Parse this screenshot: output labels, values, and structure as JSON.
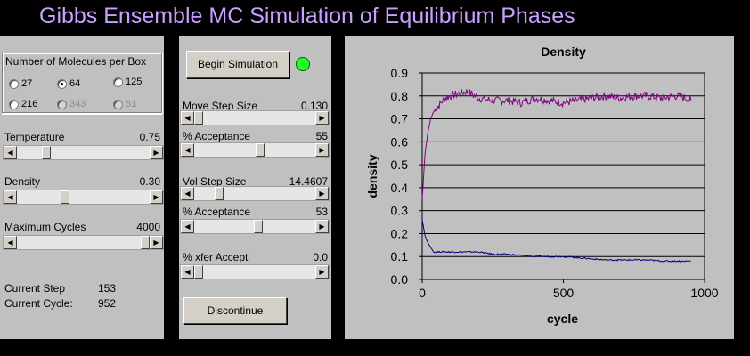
{
  "app_title": "Gibbs Ensemble MC Simulation of Equilibrium Phases",
  "left_panel": {
    "molecules_group_label": "Number of Molecules per Box",
    "molecule_options": [
      {
        "label": "27",
        "selected": false,
        "enabled": true
      },
      {
        "label": "64",
        "selected": true,
        "enabled": true
      },
      {
        "label": "125",
        "selected": false,
        "enabled": true
      },
      {
        "label": "216",
        "selected": false,
        "enabled": true
      },
      {
        "label": "343",
        "selected": false,
        "enabled": false
      },
      {
        "label": "51",
        "selected": false,
        "enabled": false
      }
    ],
    "temperature": {
      "label": "Temperature",
      "value": "0.75",
      "slider_fraction": 0.2
    },
    "density": {
      "label": "Density",
      "value": "0.30",
      "slider_fraction": 0.35
    },
    "max_cycles": {
      "label": "Maximum Cycles",
      "value": "4000",
      "slider_fraction": 1.0
    },
    "current_step": {
      "label": "Current Step",
      "value": "153"
    },
    "current_cycle": {
      "label": "Current Cycle:",
      "value": "952"
    }
  },
  "middle_panel": {
    "begin_button_label": "Begin Simulation",
    "status_indicator_color": "#22ff22",
    "move_step": {
      "label": "Move Step Size",
      "value": "0.130",
      "slider_fraction": 0.0
    },
    "move_acceptance": {
      "label": "% Acceptance",
      "value": "55",
      "slider_fraction": 0.55
    },
    "vol_step": {
      "label": "Vol Step Size",
      "value": "14.4607",
      "slider_fraction": 0.18
    },
    "vol_acceptance": {
      "label": "% Acceptance",
      "value": "53",
      "slider_fraction": 0.53
    },
    "xfer_accept": {
      "label": "% xfer Accept",
      "value": "0.0",
      "slider_fraction": 0.0
    },
    "discontinue_button_label": "Discontinue"
  },
  "chart_data": {
    "type": "line",
    "title": "Density",
    "xlabel": "cycle",
    "ylabel": "density",
    "xlim": [
      0,
      1000
    ],
    "ylim": [
      0,
      0.9
    ],
    "x_ticks": [
      "0",
      "500",
      "1000"
    ],
    "y_ticks": [
      "0.0",
      "0.1",
      "0.2",
      "0.3",
      "0.4",
      "0.5",
      "0.6",
      "0.7",
      "0.8",
      "0.9"
    ],
    "grid": "horizontal",
    "series": [
      {
        "color": "#800080",
        "x": [
          0,
          10,
          20,
          30,
          40,
          60,
          80,
          100,
          130,
          160,
          200,
          250,
          300,
          350,
          400,
          450,
          500,
          550,
          600,
          650,
          700,
          750,
          800,
          850,
          900,
          940,
          952
        ],
        "y": [
          0.35,
          0.55,
          0.64,
          0.7,
          0.73,
          0.76,
          0.79,
          0.8,
          0.81,
          0.82,
          0.79,
          0.78,
          0.78,
          0.77,
          0.79,
          0.78,
          0.77,
          0.78,
          0.79,
          0.8,
          0.79,
          0.8,
          0.8,
          0.79,
          0.8,
          0.79,
          0.78
        ]
      },
      {
        "color": "#000080",
        "x": [
          0,
          10,
          20,
          30,
          40,
          60,
          80,
          100,
          150,
          200,
          250,
          300,
          350,
          400,
          450,
          500,
          550,
          600,
          650,
          700,
          750,
          800,
          850,
          900,
          952
        ],
        "y": [
          0.26,
          0.19,
          0.16,
          0.14,
          0.12,
          0.12,
          0.12,
          0.12,
          0.12,
          0.12,
          0.11,
          0.11,
          0.105,
          0.1,
          0.1,
          0.1,
          0.095,
          0.09,
          0.085,
          0.085,
          0.085,
          0.085,
          0.08,
          0.08,
          0.08
        ]
      }
    ]
  }
}
